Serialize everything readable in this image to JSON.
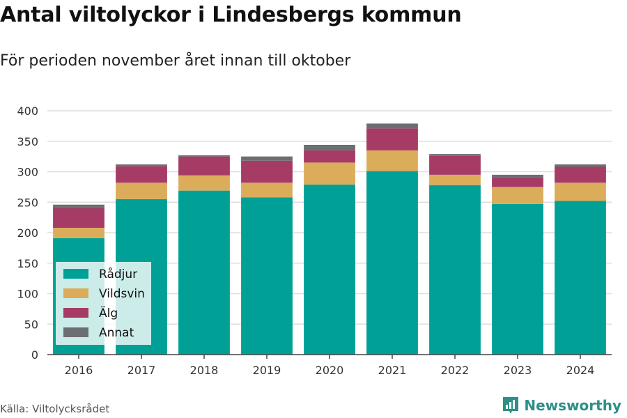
{
  "chart_data": {
    "type": "bar",
    "stacked": true,
    "title": "Antal viltolyckor i Lindesbergs kommun",
    "subtitle": "För perioden november året innan till oktober",
    "categories": [
      "2016",
      "2017",
      "2018",
      "2019",
      "2020",
      "2021",
      "2022",
      "2023",
      "2024"
    ],
    "series": [
      {
        "name": "Rådjur",
        "color": "#00a096",
        "values": [
          191,
          255,
          269,
          258,
          279,
          301,
          278,
          247,
          252
        ]
      },
      {
        "name": "Vildsvin",
        "color": "#dbac5a",
        "values": [
          17,
          27,
          25,
          24,
          36,
          34,
          17,
          28,
          30
        ]
      },
      {
        "name": "Älg",
        "color": "#a63b66",
        "values": [
          32,
          27,
          31,
          36,
          20,
          36,
          31,
          16,
          26
        ]
      },
      {
        "name": "Annat",
        "color": "#6d6e72",
        "values": [
          6,
          3,
          2,
          7,
          9,
          8,
          3,
          4,
          4
        ]
      }
    ],
    "ylim": [
      0,
      400
    ],
    "yticks": [
      0,
      50,
      100,
      150,
      200,
      250,
      300,
      350,
      400
    ],
    "grid": true,
    "legend_position": "bottom-left"
  },
  "footer": {
    "source": "Källa: Viltolycksrådet",
    "brand": "Newsworthy"
  },
  "colors": {
    "brand": "#2e8f88",
    "grid": "#dddddd"
  },
  "icons": {
    "brand_logo": "newsworthy-logo-icon"
  }
}
